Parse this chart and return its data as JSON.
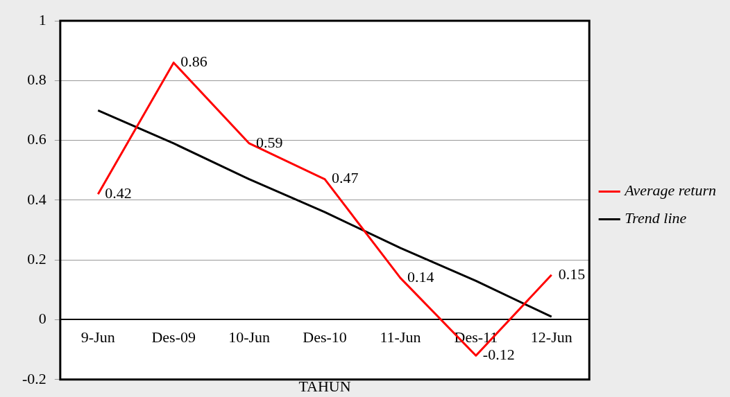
{
  "chart_data": {
    "type": "line",
    "xlabel": "TAHUN",
    "categories": [
      "9-Jun",
      "Des-09",
      "10-Jun",
      "Des-10",
      "11-Jun",
      "Des-11",
      "12-Jun"
    ],
    "series": [
      {
        "name": "Average return",
        "color": "#ff0000",
        "values": [
          0.42,
          0.86,
          0.59,
          0.47,
          0.14,
          -0.12,
          0.15
        ],
        "value_labels": [
          "0.42",
          "0.86",
          "0.59",
          "0.47",
          "0.14",
          "-0.12",
          "0.15"
        ]
      },
      {
        "name": "Trend line",
        "type": "line",
        "color": "#000000",
        "x": [
          "9-Jun",
          "Des-09",
          "10-Jun",
          "Des-10",
          "11-Jun",
          "Des-11",
          "12-Jun"
        ],
        "values": [
          0.7,
          0.59,
          0.47,
          0.36,
          0.24,
          0.13,
          0.01
        ]
      }
    ],
    "ylim": [
      -0.2,
      1
    ],
    "yticks": [
      -0.2,
      0,
      0.2,
      0.4,
      0.6,
      0.8,
      1
    ],
    "grid": "y",
    "legend": "right",
    "marker": "none",
    "line_style": "solid"
  }
}
